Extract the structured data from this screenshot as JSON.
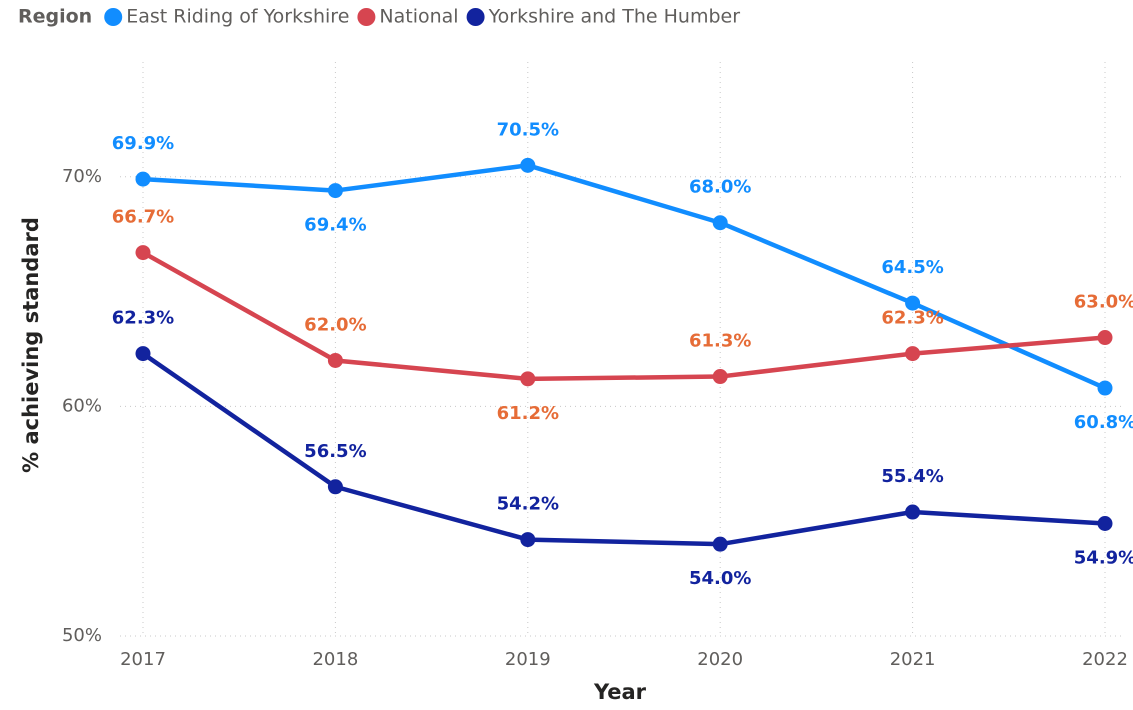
{
  "chart_data": {
    "type": "line",
    "legend_title": "Region",
    "x_label": "Year",
    "y_label": "% achieving standard",
    "categories": [
      "2017",
      "2018",
      "2019",
      "2020",
      "2021",
      "2022"
    ],
    "series": [
      {
        "name": "East Riding of Yorkshire",
        "color": "#118dff",
        "label_color": "#118dff",
        "values": [
          69.9,
          69.4,
          70.5,
          68.0,
          64.5,
          60.8
        ],
        "value_labels": [
          "69.9%",
          "69.4%",
          "70.5%",
          "68.0%",
          "64.5%",
          "60.8%"
        ]
      },
      {
        "name": "National",
        "color": "#d64550",
        "label_color": "#e66c37",
        "values": [
          66.7,
          62.0,
          61.2,
          61.3,
          62.3,
          63.0
        ],
        "value_labels": [
          "66.7%",
          "62.0%",
          "61.2%",
          "61.3%",
          "62.3%",
          "63.0%"
        ]
      },
      {
        "name": "Yorkshire and The Humber",
        "color": "#12239e",
        "label_color": "#12239e",
        "values": [
          62.3,
          56.5,
          54.2,
          54.0,
          55.4,
          54.9
        ],
        "value_labels": [
          "62.3%",
          "56.5%",
          "54.2%",
          "54.0%",
          "55.4%",
          "54.9%"
        ]
      }
    ],
    "ylim": [
      50,
      75
    ],
    "yticks": [
      {
        "value": 50,
        "label": "50%"
      },
      {
        "value": 60,
        "label": "60%"
      },
      {
        "value": 70,
        "label": "70%"
      }
    ],
    "grid": true
  }
}
